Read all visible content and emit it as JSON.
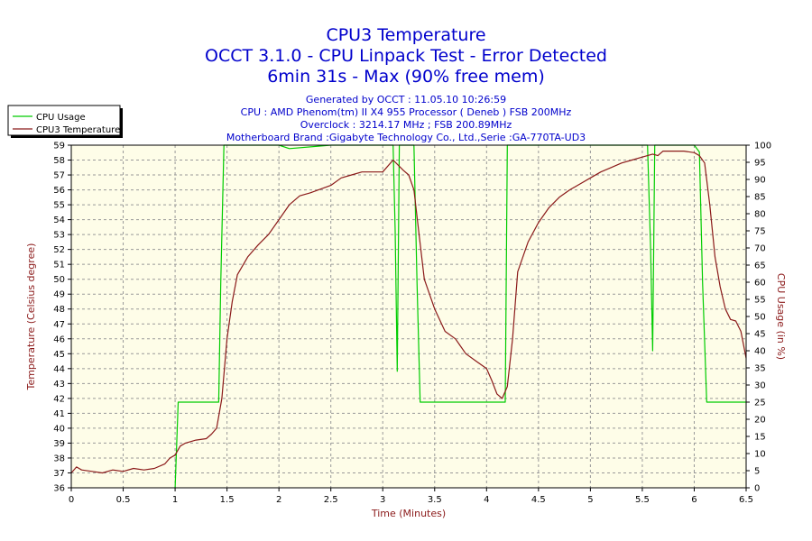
{
  "chart_data": {
    "type": "line",
    "title_lines": [
      "CPU3 Temperature",
      "OCCT 3.1.0 - CPU Linpack Test - Error Detected",
      "6min 31s - Max (90% free mem)"
    ],
    "info_lines": [
      "Generated by OCCT : 11.05.10 10:26:59",
      "CPU : AMD Phenom(tm) II X4 955 Processor ( Deneb ) FSB 200MHz",
      "Overclock : 3214.17 MHz ; FSB 200.89MHz",
      "Motherboard Brand :Gigabyte Technology Co., Ltd.,Serie :GA-770TA-UD3"
    ],
    "xlabel": "Time (Minutes)",
    "ylabel_left": "Temperature (Celsius degree)",
    "ylabel_right": "CPU Usage (in %)",
    "xlim": [
      0,
      6.5
    ],
    "ylim_left": [
      36,
      59
    ],
    "ylim_right": [
      0,
      100
    ],
    "x_ticks": [
      "0",
      "0.5",
      "1",
      "1.5",
      "2",
      "2.5",
      "3",
      "3.5",
      "4",
      "4.5",
      "5",
      "5.5",
      "6",
      "6.5"
    ],
    "y_left_ticks": [
      "36",
      "37",
      "38",
      "39",
      "40",
      "41",
      "42",
      "43",
      "44",
      "45",
      "46",
      "47",
      "48",
      "49",
      "50",
      "51",
      "52",
      "53",
      "54",
      "55",
      "56",
      "57",
      "58",
      "59"
    ],
    "y_right_ticks": [
      "0",
      "5",
      "10",
      "15",
      "20",
      "25",
      "30",
      "35",
      "40",
      "45",
      "50",
      "55",
      "60",
      "65",
      "70",
      "75",
      "80",
      "85",
      "90",
      "95",
      "100"
    ],
    "grid": true,
    "legend": "top-left, outside plot",
    "colors": {
      "plot_bg": "#fefde8",
      "grid": "#999999",
      "usage": "#00cc00",
      "temperature": "#8b1a1a",
      "text": "#0000cc"
    },
    "series": [
      {
        "name": "CPU Usage",
        "axis": "right",
        "x": [
          0,
          0.98,
          1.0,
          1.03,
          1.42,
          1.44,
          1.47,
          1.5,
          2.0,
          2.1,
          2.5,
          3.0,
          3.1,
          3.12,
          3.14,
          3.16,
          3.2,
          3.3,
          3.33,
          3.36,
          3.4,
          3.5,
          4.0,
          4.18,
          4.2,
          4.22,
          4.3,
          5.0,
          5.55,
          5.58,
          5.6,
          5.62,
          5.65,
          5.7,
          6.0,
          6.05,
          6.08,
          6.12,
          6.5
        ],
        "values": [
          null,
          null,
          0,
          25,
          25,
          60,
          100,
          100,
          100,
          99,
          100,
          100,
          100,
          75,
          34,
          100,
          100,
          100,
          60,
          25,
          25,
          25,
          25,
          25,
          100,
          100,
          100,
          100,
          100,
          70,
          40,
          100,
          100,
          100,
          100,
          98,
          60,
          25,
          25
        ]
      },
      {
        "name": "CPU3 Temperature",
        "axis": "left",
        "x": [
          0,
          0.05,
          0.1,
          0.2,
          0.3,
          0.4,
          0.5,
          0.6,
          0.7,
          0.8,
          0.9,
          0.95,
          1.0,
          1.05,
          1.1,
          1.2,
          1.3,
          1.35,
          1.4,
          1.45,
          1.5,
          1.55,
          1.6,
          1.7,
          1.8,
          1.9,
          2.0,
          2.1,
          2.2,
          2.3,
          2.5,
          2.6,
          2.7,
          2.8,
          3.0,
          3.1,
          3.2,
          3.25,
          3.3,
          3.35,
          3.4,
          3.5,
          3.6,
          3.7,
          3.8,
          3.9,
          4.0,
          4.05,
          4.1,
          4.15,
          4.2,
          4.25,
          4.3,
          4.4,
          4.5,
          4.6,
          4.7,
          4.8,
          4.9,
          5.0,
          5.1,
          5.2,
          5.3,
          5.4,
          5.5,
          5.6,
          5.65,
          5.7,
          5.8,
          5.9,
          6.0,
          6.05,
          6.1,
          6.15,
          6.2,
          6.25,
          6.3,
          6.35,
          6.4,
          6.45,
          6.5
        ],
        "values": [
          37.0,
          37.4,
          37.2,
          37.1,
          37.0,
          37.2,
          37.1,
          37.3,
          37.2,
          37.3,
          37.6,
          38.0,
          38.2,
          38.8,
          39.0,
          39.2,
          39.3,
          39.6,
          40.0,
          42.0,
          46.0,
          48.5,
          50.3,
          51.5,
          52.3,
          53.0,
          54.0,
          55.0,
          55.6,
          55.8,
          56.3,
          56.8,
          57.0,
          57.2,
          57.2,
          58.0,
          57.3,
          57.0,
          56.0,
          53.0,
          50.0,
          48.0,
          46.5,
          46.0,
          45.0,
          44.5,
          44.0,
          43.2,
          42.3,
          42.0,
          42.8,
          46.0,
          50.5,
          52.5,
          53.8,
          54.8,
          55.5,
          56.0,
          56.4,
          56.8,
          57.2,
          57.5,
          57.8,
          58.0,
          58.2,
          58.4,
          58.3,
          58.6,
          58.6,
          58.6,
          58.5,
          58.3,
          57.8,
          55.0,
          51.5,
          49.5,
          48.0,
          47.3,
          47.2,
          46.5,
          44.7
        ]
      }
    ]
  }
}
